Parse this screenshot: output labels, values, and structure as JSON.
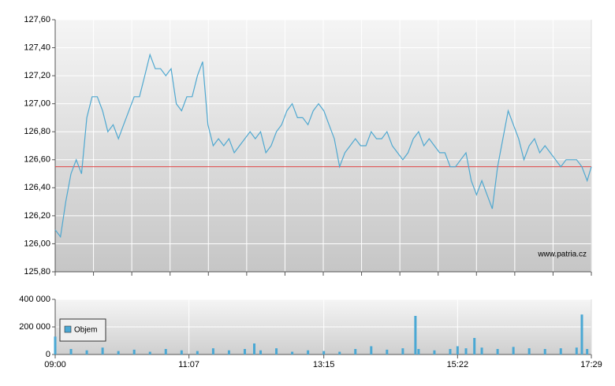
{
  "chart_data": [
    {
      "type": "line",
      "watermark": "www.patria.cz",
      "x": [
        "09:00",
        "09:05",
        "09:10",
        "09:15",
        "09:20",
        "09:25",
        "09:30",
        "09:35",
        "09:40",
        "09:45",
        "09:50",
        "09:55",
        "10:00",
        "10:05",
        "10:10",
        "10:15",
        "10:20",
        "10:25",
        "10:30",
        "10:35",
        "10:40",
        "10:45",
        "10:50",
        "10:55",
        "11:00",
        "11:05",
        "11:10",
        "11:15",
        "11:20",
        "11:25",
        "11:30",
        "11:35",
        "11:40",
        "11:45",
        "11:50",
        "11:55",
        "12:00",
        "12:05",
        "12:10",
        "12:15",
        "12:20",
        "12:25",
        "12:30",
        "12:35",
        "12:40",
        "12:45",
        "12:50",
        "12:55",
        "13:00",
        "13:05",
        "13:10",
        "13:15",
        "13:20",
        "13:25",
        "13:30",
        "13:35",
        "13:40",
        "13:45",
        "13:50",
        "13:55",
        "14:00",
        "14:05",
        "14:10",
        "14:15",
        "14:20",
        "14:25",
        "14:30",
        "14:35",
        "14:40",
        "14:45",
        "14:50",
        "14:55",
        "15:00",
        "15:05",
        "15:10",
        "15:15",
        "15:20",
        "15:25",
        "15:30",
        "15:35",
        "15:40",
        "15:45",
        "15:50",
        "15:55",
        "16:00",
        "16:05",
        "16:10",
        "16:15",
        "16:20",
        "16:25",
        "16:30",
        "16:35",
        "16:40",
        "16:45",
        "16:50",
        "16:55",
        "17:00",
        "17:05",
        "17:10",
        "17:15",
        "17:20",
        "17:25",
        "17:29"
      ],
      "series": [
        {
          "color": "#4fa8d0",
          "values": [
            126.1,
            126.05,
            126.3,
            126.5,
            126.6,
            126.5,
            126.9,
            127.05,
            127.05,
            126.95,
            126.8,
            126.85,
            126.75,
            126.85,
            126.95,
            127.05,
            127.05,
            127.2,
            127.35,
            127.25,
            127.25,
            127.2,
            127.25,
            127.0,
            126.95,
            127.05,
            127.05,
            127.2,
            127.3,
            126.85,
            126.7,
            126.75,
            126.7,
            126.75,
            126.65,
            126.7,
            126.75,
            126.8,
            126.75,
            126.8,
            126.65,
            126.7,
            126.8,
            126.85,
            126.95,
            127.0,
            126.9,
            126.9,
            126.85,
            126.95,
            127.0,
            126.95,
            126.85,
            126.75,
            126.55,
            126.65,
            126.7,
            126.75,
            126.7,
            126.7,
            126.8,
            126.75,
            126.75,
            126.8,
            126.7,
            126.65,
            126.6,
            126.65,
            126.75,
            126.8,
            126.7,
            126.75,
            126.7,
            126.65,
            126.65,
            126.55,
            126.55,
            126.6,
            126.65,
            126.45,
            126.35,
            126.45,
            126.35,
            126.25,
            126.55,
            126.75,
            126.95,
            126.85,
            126.75,
            126.6,
            126.7,
            126.75,
            126.65,
            126.7,
            126.65,
            126.6,
            126.55,
            126.6,
            126.6,
            126.6,
            126.55,
            126.45,
            126.55
          ]
        }
      ],
      "reference_line": {
        "value": 126.55,
        "color": "#e04848"
      },
      "xlim": [
        "09:00",
        "17:29"
      ],
      "ylim": [
        125.8,
        127.6
      ],
      "yticks": [
        {
          "value": 125.8,
          "label": "125,80"
        },
        {
          "value": 126.0,
          "label": "126,00"
        },
        {
          "value": 126.2,
          "label": "126,20"
        },
        {
          "value": 126.4,
          "label": "126,40"
        },
        {
          "value": 126.6,
          "label": "126,60"
        },
        {
          "value": 126.8,
          "label": "126,80"
        },
        {
          "value": 127.0,
          "label": "127,00"
        },
        {
          "value": 127.2,
          "label": "127,20"
        },
        {
          "value": 127.4,
          "label": "127,40"
        },
        {
          "value": 127.6,
          "label": "127,60"
        }
      ],
      "grid": true
    },
    {
      "type": "bar",
      "x": [
        "09:00",
        "09:15",
        "09:30",
        "09:45",
        "10:00",
        "10:15",
        "10:30",
        "10:45",
        "11:00",
        "11:15",
        "11:30",
        "11:45",
        "12:00",
        "12:09",
        "12:15",
        "12:30",
        "12:45",
        "13:00",
        "13:15",
        "13:30",
        "13:45",
        "14:00",
        "14:15",
        "14:30",
        "14:42",
        "14:45",
        "15:00",
        "15:15",
        "15:22",
        "15:30",
        "15:38",
        "15:45",
        "16:00",
        "16:15",
        "16:30",
        "16:45",
        "17:00",
        "17:15",
        "17:20",
        "17:25"
      ],
      "series": [
        {
          "name": "Objem",
          "color": "#4aa8d4",
          "values": [
            130000,
            40000,
            30000,
            50000,
            25000,
            35000,
            20000,
            40000,
            30000,
            25000,
            45000,
            30000,
            40000,
            80000,
            30000,
            45000,
            20000,
            30000,
            25000,
            20000,
            40000,
            60000,
            35000,
            45000,
            280000,
            40000,
            30000,
            40000,
            60000,
            45000,
            120000,
            50000,
            40000,
            55000,
            45000,
            40000,
            45000,
            50000,
            290000,
            40000
          ]
        }
      ],
      "xlim": [
        "09:00",
        "17:29"
      ],
      "xticks": [
        "09:00",
        "11:07",
        "13:15",
        "15:22",
        "17:29"
      ],
      "ylim": [
        0,
        400000
      ],
      "yticks": [
        0,
        {
          "value": 200000,
          "label": "200 000"
        },
        {
          "value": 400000,
          "label": "400 000"
        }
      ],
      "grid": true,
      "legend": "top-left"
    }
  ]
}
